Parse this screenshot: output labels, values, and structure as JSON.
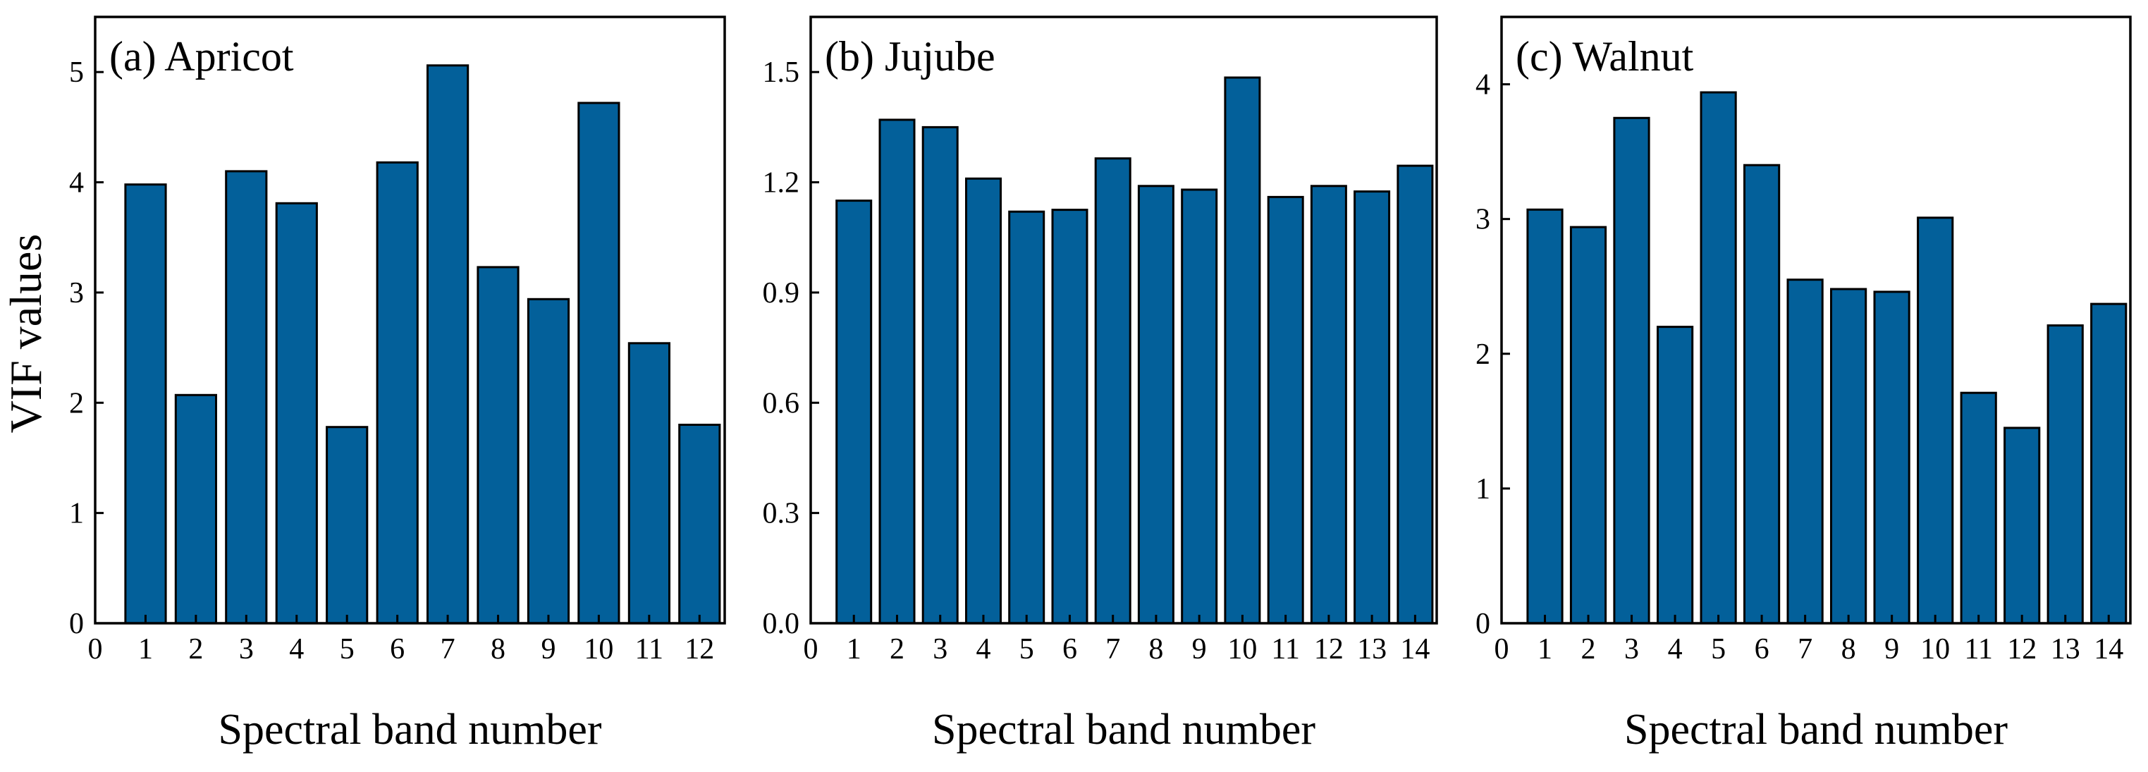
{
  "figure": {
    "ylabel": "VIF values"
  },
  "chart_data": [
    {
      "type": "bar",
      "title": "(a) Apricot",
      "xlabel": "Spectral band number",
      "ylabel": "VIF values",
      "x_ticks": [
        "0",
        "1",
        "2",
        "3",
        "4",
        "5",
        "6",
        "7",
        "8",
        "9",
        "10",
        "11",
        "12"
      ],
      "y_ticks": [
        "0",
        "1",
        "2",
        "3",
        "4",
        "5"
      ],
      "xlim": [
        0,
        12.5
      ],
      "ylim": [
        0,
        5.5
      ],
      "categories": [
        1,
        2,
        3,
        4,
        5,
        6,
        7,
        8,
        9,
        10,
        11,
        12
      ],
      "values": [
        3.98,
        2.07,
        4.1,
        3.81,
        1.78,
        4.18,
        5.06,
        3.23,
        2.94,
        4.72,
        2.54,
        1.8
      ],
      "grid": false,
      "color": "#03609a"
    },
    {
      "type": "bar",
      "title": "(b) Jujube",
      "xlabel": "Spectral band number",
      "ylabel": "",
      "x_ticks": [
        "0",
        "1",
        "2",
        "3",
        "4",
        "5",
        "6",
        "7",
        "8",
        "9",
        "10",
        "11",
        "12",
        "13",
        "14"
      ],
      "y_ticks": [
        "0.0",
        "0.3",
        "0.6",
        "0.9",
        "1.2",
        "1.5"
      ],
      "xlim": [
        0,
        14.5
      ],
      "ylim": [
        0,
        1.65
      ],
      "categories": [
        1,
        2,
        3,
        4,
        5,
        6,
        7,
        8,
        9,
        10,
        11,
        12,
        13,
        14
      ],
      "values": [
        1.15,
        1.37,
        1.35,
        1.21,
        1.12,
        1.125,
        1.265,
        1.19,
        1.18,
        1.485,
        1.16,
        1.19,
        1.175,
        1.245
      ],
      "grid": false,
      "color": "#03609a"
    },
    {
      "type": "bar",
      "title": "(c) Walnut",
      "xlabel": "Spectral band number",
      "ylabel": "",
      "x_ticks": [
        "0",
        "1",
        "2",
        "3",
        "4",
        "5",
        "6",
        "7",
        "8",
        "9",
        "10",
        "11",
        "12",
        "13",
        "14"
      ],
      "y_ticks": [
        "0",
        "1",
        "2",
        "3",
        "4"
      ],
      "xlim": [
        0,
        14.5
      ],
      "ylim": [
        0,
        4.5
      ],
      "categories": [
        1,
        2,
        3,
        4,
        5,
        6,
        7,
        8,
        9,
        10,
        11,
        12,
        13,
        14
      ],
      "values": [
        3.07,
        2.94,
        3.75,
        2.2,
        3.94,
        3.4,
        2.55,
        2.48,
        2.46,
        3.01,
        1.71,
        1.45,
        2.21,
        2.37
      ],
      "grid": false,
      "color": "#03609a"
    }
  ]
}
